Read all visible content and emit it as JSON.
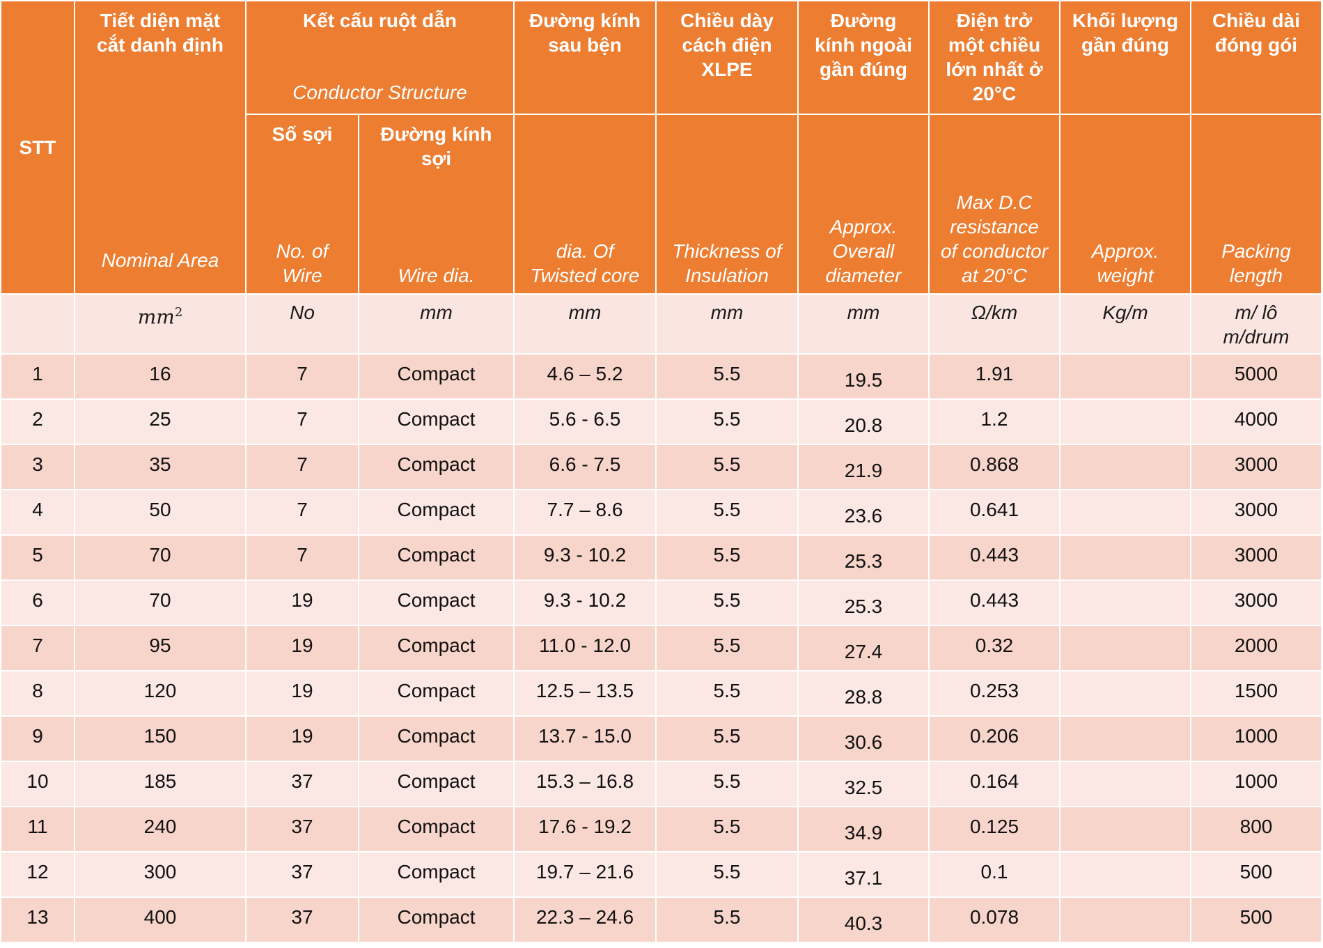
{
  "header": {
    "stt": "STT",
    "nominal_area_vi": "Tiết diện mặt cắt danh định",
    "nominal_area_en": "Nominal Area",
    "conductor_vi": "Kết cấu ruột dẫn",
    "conductor_en": "Conductor Structure",
    "no_wire_vi": "Số sợi",
    "no_wire_en": "No. of Wire",
    "wire_dia_vi": "Đường kính sợi",
    "wire_dia_en": "Wire dia.",
    "twisted_vi": "Đường kính sau bện",
    "twisted_en": "dia. Of Twisted core",
    "insulation_vi": "Chiều dày cách điện XLPE",
    "insulation_en": "Thickness of Insulation",
    "overall_vi": "Đường kính ngoài gần đúng",
    "overall_en": "Approx. Overall diameter",
    "resistance_vi": "Điện trở một chiều lớn nhất ở 20°C",
    "resistance_en": "Max D.C resistance of conductor at 20°C",
    "weight_vi": "Khối lượng gần đúng",
    "weight_en": "Approx. weight",
    "packing_vi": "Chiều dài đóng gói",
    "packing_en": "Packing length"
  },
  "units": {
    "area_base": "mm",
    "area_sup": "2",
    "no": "No",
    "wire_dia": "mm",
    "twisted": "mm",
    "insulation": "mm",
    "overall": "mm",
    "resistance": "Ω/km",
    "weight": "Kg/m",
    "packing": "m/ lô m/drum"
  },
  "rows": [
    {
      "stt": "1",
      "area": "16",
      "wires": "7",
      "wire_dia": "Compact",
      "twisted": "4.6 – 5.2",
      "insulation": "5.5",
      "overall": "19.5",
      "resistance": "1.91",
      "weight": "",
      "packing": "5000"
    },
    {
      "stt": "2",
      "area": "25",
      "wires": "7",
      "wire_dia": "Compact",
      "twisted": "5.6 - 6.5",
      "insulation": "5.5",
      "overall": "20.8",
      "resistance": "1.2",
      "weight": "",
      "packing": "4000"
    },
    {
      "stt": "3",
      "area": "35",
      "wires": "7",
      "wire_dia": "Compact",
      "twisted": "6.6 - 7.5",
      "insulation": "5.5",
      "overall": "21.9",
      "resistance": "0.868",
      "weight": "",
      "packing": "3000"
    },
    {
      "stt": "4",
      "area": "50",
      "wires": "7",
      "wire_dia": "Compact",
      "twisted": "7.7 – 8.6",
      "insulation": "5.5",
      "overall": "23.6",
      "resistance": "0.641",
      "weight": "",
      "packing": "3000"
    },
    {
      "stt": "5",
      "area": "70",
      "wires": "7",
      "wire_dia": "Compact",
      "twisted": "9.3 - 10.2",
      "insulation": "5.5",
      "overall": "25.3",
      "resistance": "0.443",
      "weight": "",
      "packing": "3000"
    },
    {
      "stt": "6",
      "area": "70",
      "wires": "19",
      "wire_dia": "Compact",
      "twisted": "9.3 - 10.2",
      "insulation": "5.5",
      "overall": "25.3",
      "resistance": "0.443",
      "weight": "",
      "packing": "3000"
    },
    {
      "stt": "7",
      "area": "95",
      "wires": "19",
      "wire_dia": "Compact",
      "twisted": "11.0 - 12.0",
      "insulation": "5.5",
      "overall": "27.4",
      "resistance": "0.32",
      "weight": "",
      "packing": "2000"
    },
    {
      "stt": "8",
      "area": "120",
      "wires": "19",
      "wire_dia": "Compact",
      "twisted": "12.5 – 13.5",
      "insulation": "5.5",
      "overall": "28.8",
      "resistance": "0.253",
      "weight": "",
      "packing": "1500"
    },
    {
      "stt": "9",
      "area": "150",
      "wires": "19",
      "wire_dia": "Compact",
      "twisted": "13.7 - 15.0",
      "insulation": "5.5",
      "overall": "30.6",
      "resistance": "0.206",
      "weight": "",
      "packing": "1000"
    },
    {
      "stt": "10",
      "area": "185",
      "wires": "37",
      "wire_dia": "Compact",
      "twisted": "15.3 – 16.8",
      "insulation": "5.5",
      "overall": "32.5",
      "resistance": "0.164",
      "weight": "",
      "packing": "1000"
    },
    {
      "stt": "11",
      "area": "240",
      "wires": "37",
      "wire_dia": "Compact",
      "twisted": "17.6 - 19.2",
      "insulation": "5.5",
      "overall": "34.9",
      "resistance": "0.125",
      "weight": "",
      "packing": "800"
    },
    {
      "stt": "12",
      "area": "300",
      "wires": "37",
      "wire_dia": "Compact",
      "twisted": "19.7 – 21.6",
      "insulation": "5.5",
      "overall": "37.1",
      "resistance": "0.1",
      "weight": "",
      "packing": "500"
    },
    {
      "stt": "13",
      "area": "400",
      "wires": "37",
      "wire_dia": "Compact",
      "twisted": "22.3 – 24.6",
      "insulation": "5.5",
      "overall": "40.3",
      "resistance": "0.078",
      "weight": "",
      "packing": "500"
    }
  ],
  "colors": {
    "header_bg": "#ED7D31",
    "row_odd_bg": "#F8D5CB",
    "row_even_bg": "#FBE8E4",
    "units_bg": "#FBE5E1"
  }
}
